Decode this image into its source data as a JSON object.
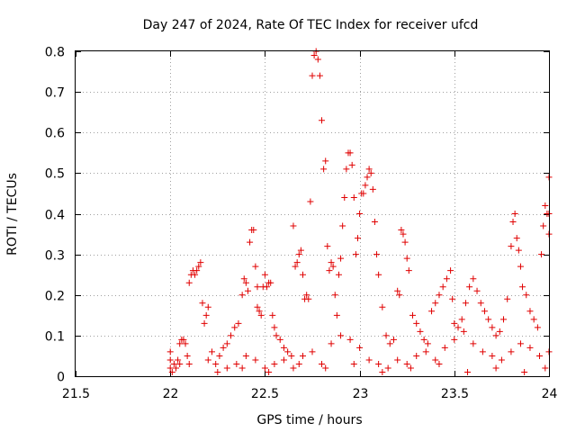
{
  "chart_data": {
    "type": "scatter",
    "title": "Day 247 of 2024, Rate Of TEC Index for receiver ufcd",
    "xlabel": "GPS time / hours",
    "ylabel": "ROTI / TECUs",
    "xlim": [
      21.5,
      24
    ],
    "ylim": [
      0,
      0.8
    ],
    "xticks": [
      21.5,
      22,
      22.5,
      23,
      23.5,
      24
    ],
    "xtick_labels": [
      "21.5",
      "22",
      "22.5",
      "23",
      "23.5",
      "24"
    ],
    "yticks": [
      0,
      0.1,
      0.2,
      0.3,
      0.4,
      0.5,
      0.6,
      0.7,
      0.8
    ],
    "ytick_labels": [
      "0",
      "0.1",
      "0.2",
      "0.3",
      "0.4",
      "0.5",
      "0.6",
      "0.7",
      "0.8"
    ],
    "grid": true,
    "marker": "+",
    "color": "#e00000",
    "series": [
      {
        "name": "ROTI",
        "points": [
          [
            22.0,
            0.02
          ],
          [
            22.0,
            0.04
          ],
          [
            22.0,
            0.06
          ],
          [
            22.01,
            0.01
          ],
          [
            22.02,
            0.03
          ],
          [
            22.03,
            0.02
          ],
          [
            22.04,
            0.04
          ],
          [
            22.05,
            0.03
          ],
          [
            22.05,
            0.08
          ],
          [
            22.06,
            0.09
          ],
          [
            22.07,
            0.09
          ],
          [
            22.08,
            0.08
          ],
          [
            22.09,
            0.05
          ],
          [
            22.1,
            0.03
          ],
          [
            22.1,
            0.23
          ],
          [
            22.11,
            0.25
          ],
          [
            22.12,
            0.26
          ],
          [
            22.13,
            0.25
          ],
          [
            22.14,
            0.26
          ],
          [
            22.15,
            0.27
          ],
          [
            22.16,
            0.28
          ],
          [
            22.17,
            0.18
          ],
          [
            22.18,
            0.13
          ],
          [
            22.19,
            0.15
          ],
          [
            22.2,
            0.17
          ],
          [
            22.2,
            0.04
          ],
          [
            22.22,
            0.06
          ],
          [
            22.24,
            0.03
          ],
          [
            22.26,
            0.05
          ],
          [
            22.28,
            0.07
          ],
          [
            22.3,
            0.08
          ],
          [
            22.32,
            0.1
          ],
          [
            22.34,
            0.12
          ],
          [
            22.36,
            0.13
          ],
          [
            22.38,
            0.2
          ],
          [
            22.39,
            0.24
          ],
          [
            22.4,
            0.23
          ],
          [
            22.41,
            0.21
          ],
          [
            22.42,
            0.33
          ],
          [
            22.43,
            0.36
          ],
          [
            22.44,
            0.36
          ],
          [
            22.45,
            0.27
          ],
          [
            22.46,
            0.22
          ],
          [
            22.46,
            0.17
          ],
          [
            22.47,
            0.16
          ],
          [
            22.48,
            0.15
          ],
          [
            22.49,
            0.22
          ],
          [
            22.5,
            0.25
          ],
          [
            22.51,
            0.22
          ],
          [
            22.52,
            0.23
          ],
          [
            22.53,
            0.23
          ],
          [
            22.54,
            0.15
          ],
          [
            22.55,
            0.12
          ],
          [
            22.56,
            0.1
          ],
          [
            22.58,
            0.09
          ],
          [
            22.6,
            0.07
          ],
          [
            22.62,
            0.06
          ],
          [
            22.64,
            0.05
          ],
          [
            22.65,
            0.37
          ],
          [
            22.66,
            0.27
          ],
          [
            22.67,
            0.28
          ],
          [
            22.68,
            0.3
          ],
          [
            22.69,
            0.31
          ],
          [
            22.7,
            0.25
          ],
          [
            22.71,
            0.19
          ],
          [
            22.72,
            0.2
          ],
          [
            22.73,
            0.19
          ],
          [
            22.74,
            0.43
          ],
          [
            22.75,
            0.74
          ],
          [
            22.76,
            0.79
          ],
          [
            22.77,
            0.8
          ],
          [
            22.78,
            0.78
          ],
          [
            22.79,
            0.74
          ],
          [
            22.8,
            0.63
          ],
          [
            22.81,
            0.51
          ],
          [
            22.82,
            0.53
          ],
          [
            22.83,
            0.32
          ],
          [
            22.84,
            0.26
          ],
          [
            22.85,
            0.28
          ],
          [
            22.86,
            0.27
          ],
          [
            22.87,
            0.2
          ],
          [
            22.88,
            0.15
          ],
          [
            22.89,
            0.25
          ],
          [
            22.9,
            0.29
          ],
          [
            22.91,
            0.37
          ],
          [
            22.92,
            0.44
          ],
          [
            22.93,
            0.51
          ],
          [
            22.94,
            0.55
          ],
          [
            22.95,
            0.55
          ],
          [
            22.96,
            0.52
          ],
          [
            22.97,
            0.44
          ],
          [
            22.98,
            0.3
          ],
          [
            22.99,
            0.34
          ],
          [
            23.0,
            0.4
          ],
          [
            23.01,
            0.45
          ],
          [
            23.02,
            0.45
          ],
          [
            23.03,
            0.47
          ],
          [
            23.04,
            0.49
          ],
          [
            23.05,
            0.51
          ],
          [
            23.06,
            0.5
          ],
          [
            23.07,
            0.46
          ],
          [
            23.08,
            0.38
          ],
          [
            23.09,
            0.3
          ],
          [
            23.1,
            0.25
          ],
          [
            23.12,
            0.17
          ],
          [
            23.14,
            0.1
          ],
          [
            23.16,
            0.08
          ],
          [
            23.18,
            0.09
          ],
          [
            23.2,
            0.21
          ],
          [
            23.21,
            0.2
          ],
          [
            23.22,
            0.36
          ],
          [
            23.23,
            0.35
          ],
          [
            23.24,
            0.33
          ],
          [
            23.25,
            0.29
          ],
          [
            23.26,
            0.26
          ],
          [
            23.28,
            0.15
          ],
          [
            23.3,
            0.13
          ],
          [
            23.32,
            0.11
          ],
          [
            23.34,
            0.09
          ],
          [
            23.36,
            0.08
          ],
          [
            23.38,
            0.16
          ],
          [
            23.4,
            0.18
          ],
          [
            23.42,
            0.2
          ],
          [
            23.44,
            0.22
          ],
          [
            23.46,
            0.24
          ],
          [
            23.48,
            0.26
          ],
          [
            23.49,
            0.19
          ],
          [
            23.5,
            0.13
          ],
          [
            23.52,
            0.12
          ],
          [
            23.54,
            0.14
          ],
          [
            23.56,
            0.18
          ],
          [
            23.58,
            0.22
          ],
          [
            23.6,
            0.24
          ],
          [
            23.62,
            0.21
          ],
          [
            23.64,
            0.18
          ],
          [
            23.66,
            0.16
          ],
          [
            23.68,
            0.14
          ],
          [
            23.7,
            0.12
          ],
          [
            23.72,
            0.1
          ],
          [
            23.74,
            0.11
          ],
          [
            23.76,
            0.14
          ],
          [
            23.78,
            0.19
          ],
          [
            23.8,
            0.32
          ],
          [
            23.81,
            0.38
          ],
          [
            23.82,
            0.4
          ],
          [
            23.83,
            0.34
          ],
          [
            23.84,
            0.31
          ],
          [
            23.85,
            0.27
          ],
          [
            23.86,
            0.22
          ],
          [
            23.88,
            0.2
          ],
          [
            23.9,
            0.16
          ],
          [
            23.92,
            0.14
          ],
          [
            23.94,
            0.12
          ],
          [
            23.96,
            0.3
          ],
          [
            23.97,
            0.37
          ],
          [
            23.98,
            0.42
          ],
          [
            23.99,
            0.4
          ],
          [
            24.0,
            0.49
          ],
          [
            24.0,
            0.4
          ],
          [
            24.0,
            0.35
          ],
          [
            22.3,
            0.02
          ],
          [
            22.35,
            0.03
          ],
          [
            22.4,
            0.05
          ],
          [
            22.45,
            0.04
          ],
          [
            22.5,
            0.02
          ],
          [
            22.55,
            0.03
          ],
          [
            22.6,
            0.04
          ],
          [
            22.65,
            0.02
          ],
          [
            22.7,
            0.05
          ],
          [
            22.75,
            0.06
          ],
          [
            22.8,
            0.03
          ],
          [
            22.85,
            0.08
          ],
          [
            22.9,
            0.1
          ],
          [
            22.95,
            0.09
          ],
          [
            23.0,
            0.07
          ],
          [
            23.05,
            0.04
          ],
          [
            23.1,
            0.03
          ],
          [
            23.15,
            0.02
          ],
          [
            23.2,
            0.04
          ],
          [
            23.25,
            0.03
          ],
          [
            23.3,
            0.05
          ],
          [
            23.35,
            0.06
          ],
          [
            23.4,
            0.04
          ],
          [
            23.45,
            0.07
          ],
          [
            23.5,
            0.09
          ],
          [
            23.55,
            0.11
          ],
          [
            23.6,
            0.08
          ],
          [
            23.65,
            0.06
          ],
          [
            23.7,
            0.05
          ],
          [
            23.75,
            0.04
          ],
          [
            23.8,
            0.06
          ],
          [
            23.85,
            0.08
          ],
          [
            23.9,
            0.07
          ],
          [
            23.95,
            0.05
          ],
          [
            24.0,
            0.06
          ],
          [
            22.25,
            0.01
          ],
          [
            22.38,
            0.02
          ],
          [
            22.52,
            0.01
          ],
          [
            22.68,
            0.03
          ],
          [
            22.82,
            0.02
          ],
          [
            22.97,
            0.03
          ],
          [
            23.12,
            0.01
          ],
          [
            23.27,
            0.02
          ],
          [
            23.42,
            0.03
          ],
          [
            23.57,
            0.01
          ],
          [
            23.72,
            0.02
          ],
          [
            23.87,
            0.01
          ],
          [
            23.98,
            0.02
          ]
        ]
      }
    ]
  }
}
